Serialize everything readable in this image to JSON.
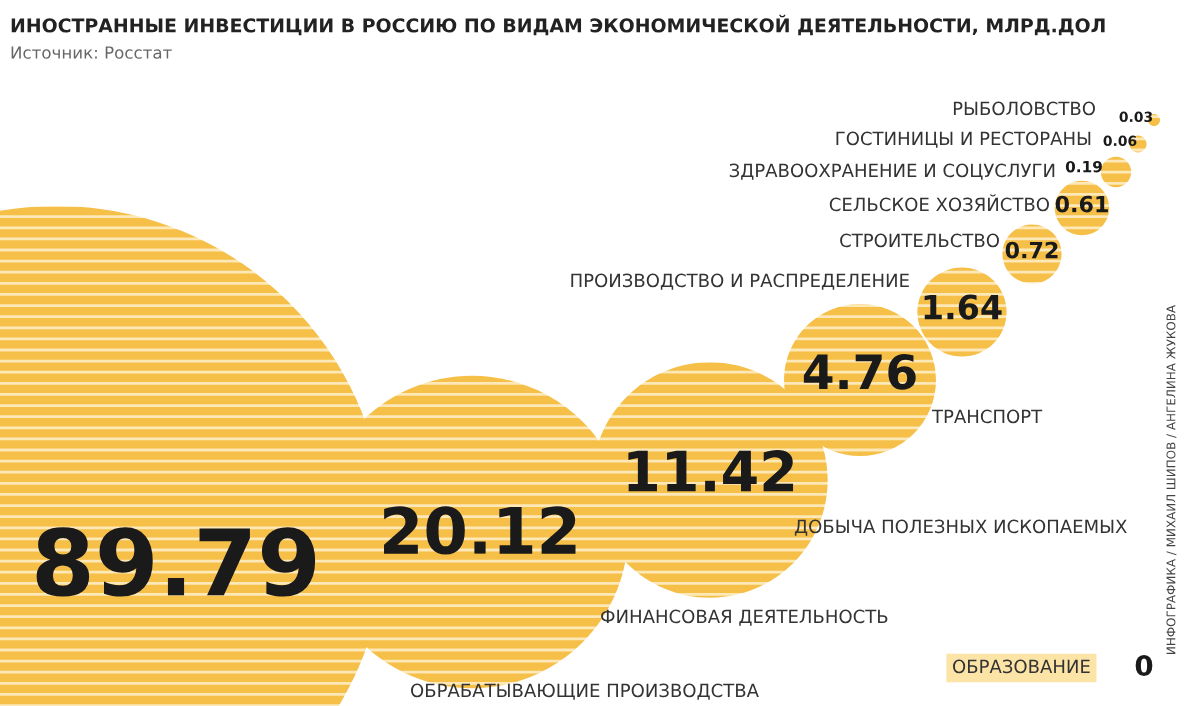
{
  "chart_data": {
    "type": "other",
    "title": "ИНОСТРАННЫЕ ИНВЕСТИЦИИ В РОССИЮ ПО ВИДАМ ЭКОНОМИЧЕСКОЙ ДЕЯТЕЛЬНОСТИ, МЛРД.ДОЛ",
    "subtitle": "Источник: Росстат",
    "categories": [
      "ОБРАБАТЫВАЮЩИЕ ПРОИЗВОДСТВА",
      "ФИНАНСОВАЯ ДЕЯТЕЛЬНОСТЬ",
      "ДОБЫЧА ПОЛЕЗНЫХ ИСКОПАЕМЫХ",
      "ТРАНСПОРТ",
      "ПРОИЗВОДСТВО И РАСПРЕДЕЛЕНИЕ",
      "СТРОИТЕЛЬСТВО",
      "СЕЛЬСКОЕ ХОЗЯЙСТВО",
      "ЗДРАВООХРАНЕНИЕ И СОЦУСЛУГИ",
      "ГОСТИНИЦЫ И РЕСТОРАНЫ",
      "РЫБОЛОВСТВО",
      "ОБРАЗОВАНИЕ"
    ],
    "values": [
      89.79,
      20.12,
      11.42,
      4.76,
      1.64,
      0.72,
      0.61,
      0.19,
      0.06,
      0.03,
      0
    ],
    "color": "#f5bf48",
    "data_labels": true,
    "annotations": [
      "ИНФОГРАФИКА / МИХАИЛ ШИПОВ / АНГЕЛИНА ЖУКОВА"
    ]
  }
}
